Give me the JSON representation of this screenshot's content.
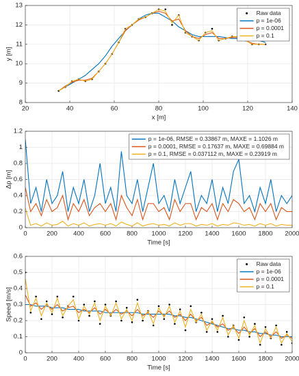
{
  "chart_data": [
    {
      "type": "line",
      "xlabel": "x [m]",
      "ylabel": "y [m]",
      "xlim": [
        20,
        140
      ],
      "xticks": [
        20,
        40,
        60,
        80,
        100,
        120,
        140
      ],
      "ylim": [
        8,
        13
      ],
      "yticks": [
        8,
        9,
        10,
        11,
        12,
        13
      ],
      "grid": true,
      "legend": "northeast",
      "x": [
        35,
        38,
        41,
        44,
        47,
        50,
        53,
        56,
        59,
        62,
        65,
        68,
        71,
        74,
        77,
        80,
        83,
        86,
        89,
        92,
        95,
        98,
        101,
        104,
        107,
        110,
        113,
        116,
        119,
        122,
        125,
        128
      ],
      "series": [
        {
          "name": "Raw data",
          "style": "markers",
          "color": "#000000",
          "values": [
            8.6,
            8.8,
            9.1,
            9.2,
            9.1,
            9.2,
            9.6,
            10.0,
            10.5,
            11.1,
            11.8,
            12.0,
            12.3,
            12.4,
            12.6,
            12.8,
            12.8,
            12.0,
            12.5,
            11.6,
            11.4,
            11.2,
            11.6,
            11.8,
            11.2,
            11.3,
            11.4,
            11.4,
            11.2,
            11.0,
            11.0,
            11.0
          ]
        },
        {
          "name": "p = 1e-06",
          "style": "line",
          "color": "#0072BD",
          "values": [
            8.6,
            8.8,
            9.0,
            9.2,
            9.4,
            9.7,
            10.0,
            10.4,
            10.9,
            11.3,
            11.7,
            12.0,
            12.3,
            12.5,
            12.6,
            12.6,
            12.4,
            12.2,
            11.9,
            11.7,
            11.5,
            11.4,
            11.4,
            11.4,
            11.4,
            11.35,
            11.3,
            11.3,
            11.3,
            11.2,
            11.2,
            11.1
          ]
        },
        {
          "name": "p = 0.0001",
          "style": "line",
          "color": "#D95319",
          "values": [
            8.6,
            8.85,
            9.05,
            9.15,
            9.15,
            9.25,
            9.6,
            10.0,
            10.5,
            11.1,
            11.7,
            12.0,
            12.25,
            12.4,
            12.6,
            12.7,
            12.6,
            12.2,
            12.3,
            11.7,
            11.4,
            11.3,
            11.5,
            11.6,
            11.3,
            11.3,
            11.35,
            11.35,
            11.2,
            11.05,
            11.0,
            11.0
          ]
        },
        {
          "name": "p = 0.1",
          "style": "line",
          "color": "#EDB120",
          "values": [
            8.6,
            8.8,
            9.1,
            9.2,
            9.1,
            9.2,
            9.6,
            10.0,
            10.5,
            11.1,
            11.8,
            12.0,
            12.3,
            12.4,
            12.6,
            12.8,
            12.7,
            12.1,
            12.5,
            11.6,
            11.4,
            11.2,
            11.6,
            11.7,
            11.2,
            11.3,
            11.4,
            11.4,
            11.2,
            11.0,
            11.0,
            11.0
          ]
        }
      ]
    },
    {
      "type": "line",
      "xlabel": "Time [s]",
      "ylabel": "Δp [m]",
      "xlim": [
        0,
        2000
      ],
      "xticks": [
        0,
        200,
        400,
        600,
        800,
        1000,
        1200,
        1400,
        1600,
        1800,
        2000
      ],
      "ylim": [
        0,
        1.2
      ],
      "yticks": [
        0,
        0.2,
        0.4,
        0.6,
        0.8,
        1,
        1.2
      ],
      "grid": true,
      "legend": "northeast",
      "x": [
        0,
        40,
        80,
        120,
        160,
        200,
        240,
        280,
        320,
        360,
        400,
        440,
        480,
        520,
        560,
        600,
        640,
        680,
        720,
        760,
        800,
        840,
        880,
        920,
        960,
        1000,
        1040,
        1080,
        1120,
        1160,
        1200,
        1240,
        1280,
        1320,
        1360,
        1400,
        1440,
        1480,
        1520,
        1560,
        1600,
        1640,
        1680,
        1720,
        1760,
        1800,
        1840,
        1880,
        1920,
        1960,
        2000
      ],
      "series": [
        {
          "name": "p = 1e-06, RMSE = 0.33867 m, MAXE = 1.1026 m",
          "style": "line",
          "color": "#0072BD",
          "values": [
            1.1,
            0.3,
            0.5,
            0.2,
            0.6,
            0.3,
            0.4,
            0.7,
            0.2,
            0.5,
            0.3,
            0.6,
            0.2,
            0.4,
            0.8,
            0.3,
            0.5,
            0.2,
            0.95,
            0.4,
            0.3,
            0.6,
            0.2,
            0.5,
            0.8,
            0.3,
            0.4,
            0.2,
            0.6,
            0.3,
            0.5,
            0.7,
            0.2,
            0.4,
            0.3,
            0.6,
            0.2,
            0.5,
            0.3,
            0.7,
            0.85,
            0.3,
            0.4,
            0.2,
            0.5,
            0.3,
            0.6,
            0.2,
            0.4,
            0.3,
            0.4
          ]
        },
        {
          "name": "p = 0.0001, RMSE = 0.17637 m, MAXE = 0.69884 m",
          "style": "line",
          "color": "#D95319",
          "values": [
            0.5,
            0.2,
            0.3,
            0.15,
            0.35,
            0.2,
            0.25,
            0.4,
            0.1,
            0.3,
            0.2,
            0.35,
            0.15,
            0.25,
            0.3,
            0.2,
            0.3,
            0.1,
            0.4,
            0.25,
            0.15,
            0.35,
            0.1,
            0.3,
            0.3,
            0.2,
            0.25,
            0.1,
            0.35,
            0.2,
            0.3,
            0.3,
            0.1,
            0.25,
            0.2,
            0.3,
            0.1,
            0.3,
            0.2,
            0.35,
            0.3,
            0.2,
            0.25,
            0.1,
            0.3,
            0.2,
            0.3,
            0.1,
            0.25,
            0.2,
            0.2
          ]
        },
        {
          "name": "p = 0.1, RMSE = 0.037112 m, MAXE = 0.23919 m",
          "style": "line",
          "color": "#EDB120",
          "values": [
            0.24,
            0.03,
            0.05,
            0.02,
            0.06,
            0.03,
            0.04,
            0.08,
            0.02,
            0.05,
            0.03,
            0.06,
            0.02,
            0.04,
            0.05,
            0.03,
            0.05,
            0.02,
            0.07,
            0.04,
            0.02,
            0.06,
            0.02,
            0.04,
            0.05,
            0.03,
            0.04,
            0.02,
            0.06,
            0.03,
            0.05,
            0.05,
            0.02,
            0.04,
            0.03,
            0.05,
            0.02,
            0.04,
            0.03,
            0.06,
            0.05,
            0.03,
            0.04,
            0.02,
            0.05,
            0.03,
            0.05,
            0.02,
            0.04,
            0.03,
            0.03
          ]
        }
      ]
    },
    {
      "type": "line",
      "xlabel": "Time [s]",
      "ylabel": "Speed [m/s]",
      "xlim": [
        0,
        2000
      ],
      "xticks": [
        0,
        200,
        400,
        600,
        800,
        1000,
        1200,
        1400,
        1600,
        1800,
        2000
      ],
      "ylim": [
        0,
        0.6
      ],
      "yticks": [
        0,
        0.1,
        0.2,
        0.3,
        0.4,
        0.5,
        0.6
      ],
      "grid": true,
      "legend": "northeast",
      "x": [
        0,
        40,
        80,
        120,
        160,
        200,
        240,
        280,
        320,
        360,
        400,
        440,
        480,
        520,
        560,
        600,
        640,
        680,
        720,
        760,
        800,
        840,
        880,
        920,
        960,
        1000,
        1040,
        1080,
        1120,
        1160,
        1200,
        1240,
        1280,
        1320,
        1360,
        1400,
        1440,
        1480,
        1520,
        1560,
        1600,
        1640,
        1680,
        1720,
        1760,
        1800,
        1840,
        1880,
        1920,
        1960,
        2000
      ],
      "series": [
        {
          "name": "Raw data",
          "style": "markers",
          "color": "#000000",
          "values": [
            0.5,
            0.25,
            0.35,
            0.21,
            0.32,
            0.24,
            0.35,
            0.22,
            0.29,
            0.35,
            0.2,
            0.3,
            0.23,
            0.32,
            0.18,
            0.3,
            0.23,
            0.32,
            0.2,
            0.28,
            0.19,
            0.33,
            0.2,
            0.26,
            0.17,
            0.29,
            0.21,
            0.3,
            0.18,
            0.27,
            0.14,
            0.29,
            0.19,
            0.25,
            0.13,
            0.21,
            0.13,
            0.23,
            0.1,
            0.17,
            0.08,
            0.22,
            0.1,
            0.18,
            0.05,
            0.16,
            0.09,
            0.17,
            0.05,
            0.13,
            0.06
          ]
        },
        {
          "name": "p = 1e-06",
          "style": "line",
          "color": "#0072BD",
          "values": [
            0.3,
            0.3,
            0.29,
            0.29,
            0.29,
            0.28,
            0.28,
            0.28,
            0.27,
            0.27,
            0.27,
            0.26,
            0.26,
            0.26,
            0.26,
            0.25,
            0.25,
            0.25,
            0.25,
            0.25,
            0.25,
            0.25,
            0.24,
            0.24,
            0.24,
            0.24,
            0.24,
            0.24,
            0.23,
            0.23,
            0.22,
            0.22,
            0.21,
            0.2,
            0.19,
            0.18,
            0.17,
            0.16,
            0.15,
            0.15,
            0.14,
            0.14,
            0.13,
            0.13,
            0.12,
            0.12,
            0.11,
            0.11,
            0.1,
            0.1,
            0.1
          ]
        },
        {
          "name": "p = 0.0001",
          "style": "line",
          "color": "#D95319",
          "values": [
            0.36,
            0.29,
            0.31,
            0.27,
            0.3,
            0.27,
            0.3,
            0.26,
            0.28,
            0.29,
            0.25,
            0.27,
            0.25,
            0.28,
            0.24,
            0.27,
            0.24,
            0.27,
            0.24,
            0.26,
            0.23,
            0.27,
            0.23,
            0.25,
            0.22,
            0.26,
            0.23,
            0.26,
            0.22,
            0.24,
            0.2,
            0.24,
            0.2,
            0.22,
            0.17,
            0.19,
            0.16,
            0.18,
            0.14,
            0.16,
            0.12,
            0.16,
            0.12,
            0.15,
            0.1,
            0.13,
            0.1,
            0.13,
            0.09,
            0.11,
            0.09
          ]
        },
        {
          "name": "p = 0.1",
          "style": "line",
          "color": "#EDB120",
          "values": [
            0.46,
            0.26,
            0.34,
            0.23,
            0.31,
            0.25,
            0.34,
            0.23,
            0.29,
            0.33,
            0.21,
            0.29,
            0.24,
            0.31,
            0.2,
            0.29,
            0.23,
            0.31,
            0.21,
            0.27,
            0.2,
            0.31,
            0.21,
            0.26,
            0.18,
            0.28,
            0.22,
            0.29,
            0.19,
            0.26,
            0.16,
            0.27,
            0.19,
            0.24,
            0.14,
            0.2,
            0.14,
            0.22,
            0.11,
            0.17,
            0.09,
            0.2,
            0.11,
            0.17,
            0.06,
            0.15,
            0.09,
            0.16,
            0.06,
            0.12,
            0.07
          ]
        }
      ]
    }
  ]
}
